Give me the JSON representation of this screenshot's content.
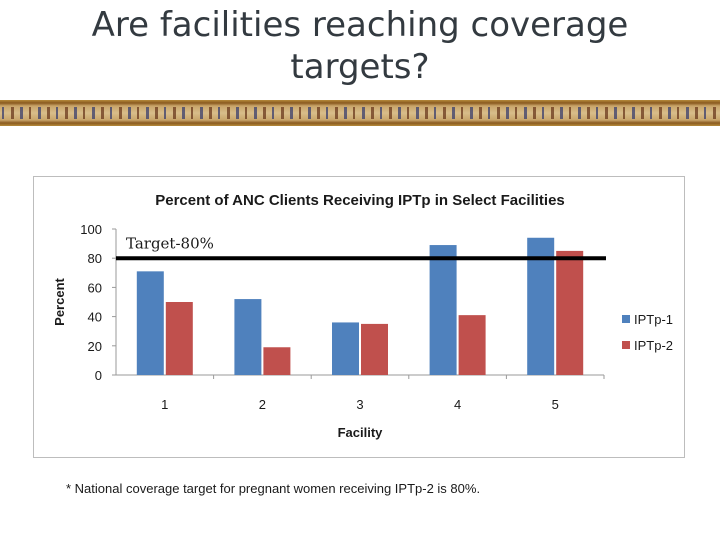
{
  "slide": {
    "title": "Are facilities reaching coverage targets?",
    "footnote": "* National coverage target for pregnant women receiving IPTp-2 is 80%."
  },
  "colors": {
    "series1": "#4f81bd",
    "series2": "#c0504d",
    "target_line": "#000000"
  },
  "chart_data": {
    "type": "bar",
    "title": "Percent of ANC Clients Receiving IPTp in Select Facilities",
    "xlabel": "Facility",
    "ylabel": "Percent",
    "categories": [
      "1",
      "2",
      "3",
      "4",
      "5"
    ],
    "series": [
      {
        "name": "IPTp-1",
        "values": [
          71,
          52,
          36,
          89,
          94
        ]
      },
      {
        "name": "IPTp-2",
        "values": [
          50,
          19,
          35,
          41,
          85
        ]
      }
    ],
    "ylim": [
      0,
      100
    ],
    "yticks": [
      0,
      20,
      40,
      60,
      80,
      100
    ],
    "grid": false,
    "legend": "right",
    "annotations": [
      {
        "text": "Target-80%",
        "y": 80
      }
    ]
  }
}
